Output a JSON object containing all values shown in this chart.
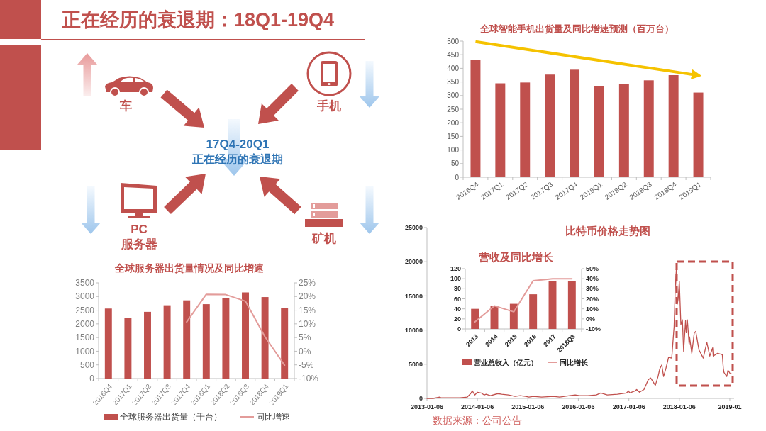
{
  "chart_data": [
    {
      "type": "other",
      "title": "正在经历的衰退期：18Q1-19Q4",
      "annotations": [
        "车",
        "手机",
        "PC",
        "服务器",
        "矿机",
        "17Q4-20Q1",
        "正在经历的衰退期"
      ]
    },
    {
      "type": "bar",
      "title": "全球智能手机出货量及同比增速预测（百万台）",
      "categories": [
        "2016Q4",
        "2017Q1",
        "2017Q2",
        "2017Q3",
        "2017Q4",
        "2018Q1",
        "2018Q2",
        "2018Q3",
        "2018Q4",
        "2019Q1"
      ],
      "series": [
        {
          "color": "#c0504d",
          "values": [
            430,
            345,
            348,
            377,
            395,
            334,
            342,
            356,
            375,
            311
          ]
        },
        {
          "type": "line",
          "color": "#f5c200",
          "x": [
            "2016Q4",
            "2019Q1"
          ],
          "values": [
            498,
            374
          ]
        }
      ],
      "ylim": [
        0,
        500
      ],
      "yticks": [
        0,
        50,
        100,
        150,
        200,
        250,
        300,
        350,
        400,
        450,
        500
      ]
    },
    {
      "type": "bar",
      "title": "全球服务器出货量情况及同比增速",
      "categories": [
        "2016Q4",
        "2017Q1",
        "2017Q2",
        "2017Q3",
        "2017Q4",
        "2018Q1",
        "2018Q2",
        "2018Q3",
        "2018Q4",
        "2019Q1"
      ],
      "series": [
        {
          "name": "全球服务器出货量（千台）",
          "color": "#c0504d",
          "values": [
            2560,
            2220,
            2440,
            2680,
            2860,
            2720,
            2950,
            3150,
            2980,
            2570
          ]
        },
        {
          "name": "同比增速",
          "type": "line",
          "axis": "y2",
          "color": "#e39c9a",
          "values": [
            null,
            null,
            null,
            null,
            10.7,
            20.8,
            20.7,
            18.3,
            5.3,
            -5.1
          ]
        }
      ],
      "ylim": [
        0,
        3500
      ],
      "yticks": [
        0,
        500,
        1000,
        1500,
        2000,
        2500,
        3000,
        3500
      ],
      "y2lim": [
        -10,
        25
      ],
      "y2ticks": [
        {
          "value": -10,
          "label": "-10%"
        },
        {
          "value": -5,
          "label": "-5%"
        },
        {
          "value": 0,
          "label": "0%"
        },
        {
          "value": 5,
          "label": "5%"
        },
        {
          "value": 10,
          "label": "10%"
        },
        {
          "value": 15,
          "label": "15%"
        },
        {
          "value": 20,
          "label": "20%"
        },
        {
          "value": 25,
          "label": "25%"
        }
      ],
      "legend": "bottom"
    },
    {
      "type": "line",
      "title": "比特币价格走势图",
      "x": [
        "2013-01-06",
        "2013-02-20",
        "2013-04-09",
        "2013-04-16",
        "2013-06-01",
        "2013-07-05",
        "2013-09-01",
        "2013-10-25",
        "2013-11-18",
        "2013-11-30",
        "2013-12-18",
        "2014-01-06",
        "2014-02-01",
        "2014-02-25",
        "2014-03-10",
        "2014-04-10",
        "2014-06-03",
        "2014-07-01",
        "2014-08-18",
        "2014-10-05",
        "2014-11-12",
        "2014-12-20",
        "2015-01-14",
        "2015-02-15",
        "2015-04-15",
        "2015-07-10",
        "2015-08-24",
        "2015-11-04",
        "2015-12-15",
        "2016-01-15",
        "2016-03-15",
        "2016-05-15",
        "2016-06-17",
        "2016-08-02",
        "2016-10-15",
        "2016-12-20",
        "2017-01-04",
        "2017-01-11",
        "2017-02-20",
        "2017-03-03",
        "2017-03-24",
        "2017-04-25",
        "2017-05-25",
        "2017-06-12",
        "2017-06-28",
        "2017-07-16",
        "2017-08-05",
        "2017-08-17",
        "2017-09-01",
        "2017-09-14",
        "2017-10-01",
        "2017-10-20",
        "2017-11-12",
        "2017-11-29",
        "2017-12-07",
        "2017-12-17",
        "2017-12-22",
        "2017-12-28",
        "2018-01-06",
        "2018-01-17",
        "2018-01-28",
        "2018-02-06",
        "2018-02-20",
        "2018-02-25",
        "2018-03-05",
        "2018-03-18",
        "2018-03-21",
        "2018-04-06",
        "2018-04-24",
        "2018-05-05",
        "2018-05-28",
        "2018-06-28",
        "2018-07-24",
        "2018-08-14",
        "2018-09-04",
        "2018-09-08",
        "2018-10-10",
        "2018-11-13",
        "2018-11-20",
        "2018-11-25",
        "2018-12-15",
        "2018-12-24",
        "2019-01-10",
        "2019-01-20"
      ],
      "series": [
        {
          "color": "#c0504d",
          "values": [
            0,
            0,
            200,
            100,
            100,
            100,
            100,
            200,
            700,
            1100,
            500,
            900,
            800,
            500,
            600,
            400,
            700,
            600,
            500,
            300,
            400,
            300,
            200,
            300,
            200,
            300,
            200,
            400,
            500,
            400,
            400,
            500,
            800,
            500,
            600,
            800,
            1100,
            800,
            1100,
            1300,
            900,
            1300,
            2700,
            3000,
            2500,
            1900,
            3200,
            4300,
            4900,
            3200,
            4400,
            6000,
            5900,
            10500,
            16000,
            19500,
            13800,
            14500,
            17100,
            10800,
            11500,
            6900,
            11400,
            9600,
            11500,
            7900,
            9000,
            6600,
            9600,
            9800,
            7100,
            5900,
            8200,
            6200,
            7400,
            6200,
            6600,
            6400,
            4400,
            3800,
            3200,
            4100,
            3600,
            3600
          ]
        }
      ],
      "xlim": [
        "2013-01-06",
        "2019-02-06"
      ],
      "xticks": [
        "2013-01-06",
        "2014-01-06",
        "2015-01-06",
        "2016-01-06",
        "2017-01-06",
        "2018-01-06",
        {
          "value": "2019-01-06",
          "label": "2019-01"
        }
      ],
      "ylim": [
        0,
        25000
      ],
      "yticks": [
        0,
        5000,
        10000,
        15000,
        20000,
        25000
      ],
      "annotations": [
        "数据来源：公司公告"
      ]
    },
    {
      "type": "bar",
      "title": "营收及同比增长",
      "categories": [
        "2013",
        "2014",
        "2015",
        "2016",
        "2017",
        "2018Q3"
      ],
      "series": [
        {
          "name": "营业总收入（亿元）",
          "color": "#c0504d",
          "values": [
            40,
            46,
            50,
            69,
            96,
            95
          ]
        },
        {
          "name": "同比增长",
          "type": "line",
          "axis": "y2",
          "color": "#e39c9a",
          "values": [
            -3,
            13,
            7,
            38,
            40,
            40
          ]
        }
      ],
      "ylim": [
        0,
        120
      ],
      "yticks": [
        0,
        20,
        40,
        60,
        80,
        100,
        120
      ],
      "y2lim": [
        -10,
        50
      ],
      "y2ticks": [
        {
          "value": -10,
          "label": "-10%"
        },
        {
          "value": 0,
          "label": "0%"
        },
        {
          "value": 10,
          "label": "10%"
        },
        {
          "value": 20,
          "label": "20%"
        },
        {
          "value": 30,
          "label": "30%"
        },
        {
          "value": 40,
          "label": "40%"
        },
        {
          "value": 50,
          "label": "50%"
        }
      ],
      "legend": "bottom"
    }
  ]
}
